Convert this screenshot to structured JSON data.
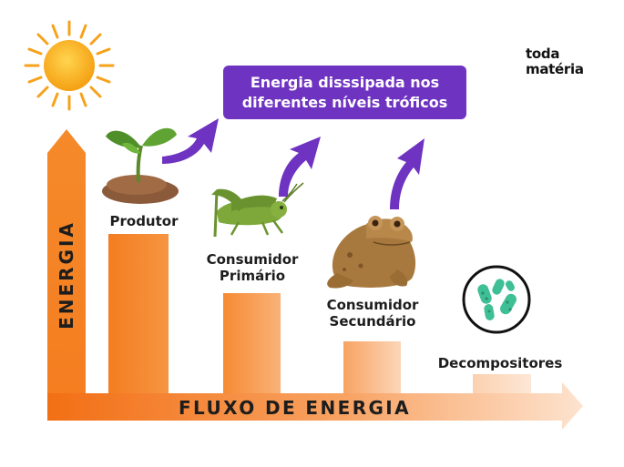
{
  "brand": {
    "line1": "toda",
    "line2": "matéria"
  },
  "callout": {
    "line1": "Energia disssipada nos",
    "line2": "diferentes níveis tróficos"
  },
  "axes": {
    "y_label": "ENERGIA",
    "x_label": "FLUXO DE ENERGIA"
  },
  "levels": [
    {
      "line1": "Produtor",
      "line2": "",
      "icon": "plant-icon"
    },
    {
      "line1": "Consumidor",
      "line2": "Primário",
      "icon": "grasshopper-icon"
    },
    {
      "line1": "Consumidor",
      "line2": "Secundário",
      "icon": "frog-icon"
    },
    {
      "line1": "Decompositores",
      "line2": "",
      "icon": "bacteria-icon"
    }
  ],
  "icons": [
    "sun-icon",
    "plant-icon",
    "grasshopper-icon",
    "frog-icon",
    "bacteria-icon",
    "dissipation-arrow-icon"
  ],
  "colors": {
    "orange": "#f47d20",
    "purple": "#6f33c1",
    "sun": "#f9a825"
  }
}
